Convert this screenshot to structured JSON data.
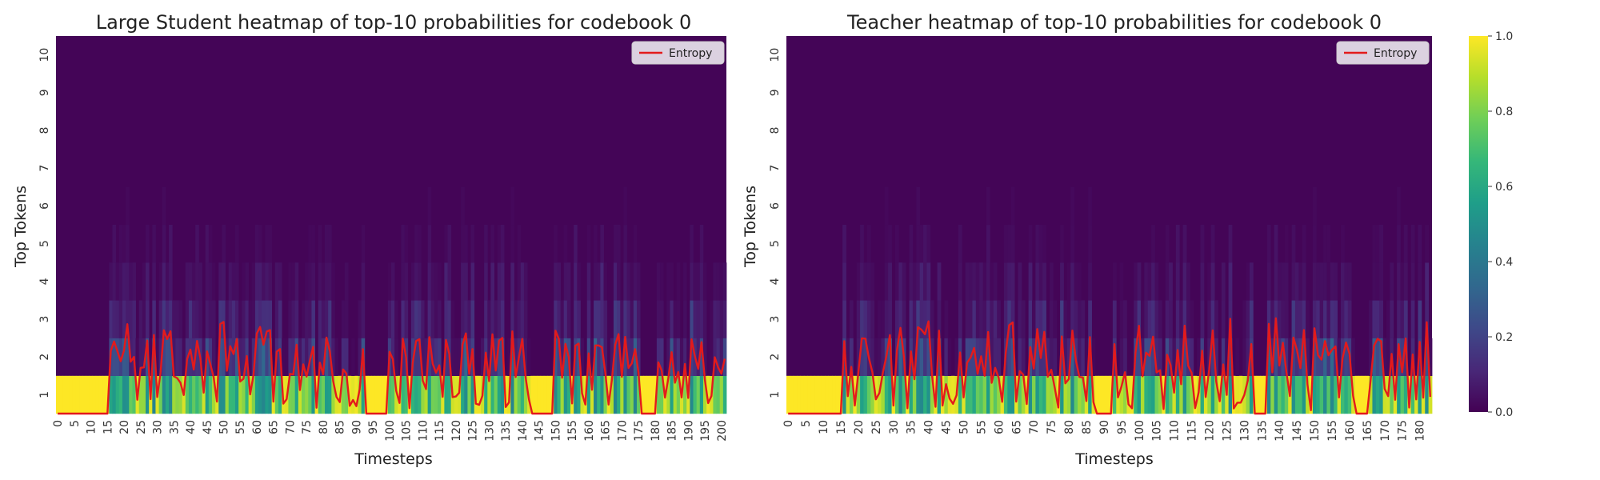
{
  "colors": {
    "entropy": "#e31a1c",
    "viridis": [
      "#440154",
      "#482878",
      "#3e4989",
      "#31688e",
      "#26828e",
      "#1f9e89",
      "#35b779",
      "#6ece58",
      "#b5de2b",
      "#fde725"
    ]
  },
  "chart_data": [
    {
      "type": "heatmap",
      "title": "Large Student heatmap of top-10 probabilities for codebook 0",
      "xlabel": "Timesteps",
      "ylabel": "Top Tokens",
      "y_categories": [
        "1",
        "2",
        "3",
        "4",
        "5",
        "6",
        "7",
        "8",
        "9",
        "10"
      ],
      "n_timesteps": 202,
      "x_ticks": [
        0,
        5,
        10,
        15,
        20,
        25,
        30,
        35,
        40,
        45,
        50,
        55,
        60,
        65,
        70,
        75,
        80,
        85,
        90,
        95,
        100,
        105,
        110,
        115,
        120,
        125,
        130,
        135,
        140,
        145,
        150,
        155,
        160,
        165,
        170,
        175,
        180,
        185,
        190,
        195,
        200
      ],
      "deterministic_ranges": [
        [
          0,
          15
        ],
        [
          93,
          99
        ],
        [
          143,
          149
        ],
        [
          176,
          180
        ]
      ],
      "entropy_ylim": [
        0,
        10
      ],
      "legend": {
        "label": "Entropy",
        "position": "top-right"
      },
      "series": [
        {
          "name": "Entropy"
        }
      ]
    },
    {
      "type": "heatmap",
      "title": "Teacher heatmap of top-10 probabilities for codebook 0",
      "xlabel": "Timesteps",
      "ylabel": "Top Tokens",
      "y_categories": [
        "1",
        "2",
        "3",
        "4",
        "5",
        "6",
        "7",
        "8",
        "9",
        "10"
      ],
      "n_timesteps": 184,
      "x_ticks": [
        0,
        5,
        10,
        15,
        20,
        25,
        30,
        35,
        40,
        45,
        50,
        55,
        60,
        65,
        70,
        75,
        80,
        85,
        90,
        95,
        100,
        105,
        110,
        115,
        120,
        125,
        130,
        135,
        140,
        145,
        150,
        155,
        160,
        165,
        170,
        175,
        180
      ],
      "deterministic_ranges": [
        [
          0,
          15
        ],
        [
          88,
          92
        ],
        [
          133,
          136
        ],
        [
          162,
          165
        ]
      ],
      "entropy_ylim": [
        0,
        10
      ],
      "legend": {
        "label": "Entropy",
        "position": "top-right"
      },
      "series": [
        {
          "name": "Entropy"
        }
      ]
    }
  ],
  "colorbar": {
    "range": [
      0,
      1
    ],
    "ticks": [
      "0.0",
      "0.2",
      "0.4",
      "0.6",
      "0.8",
      "1.0"
    ]
  }
}
